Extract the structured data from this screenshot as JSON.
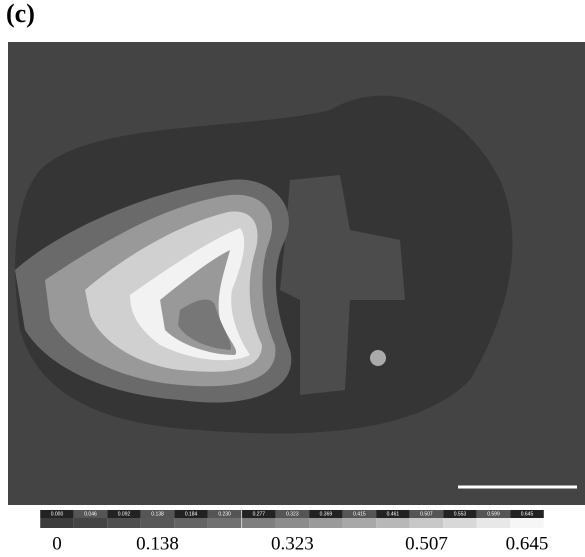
{
  "chart_data": {
    "type": "contour",
    "title": "(c)",
    "levels": [
      0,
      0.046,
      0.092,
      0.138,
      0.184,
      0.23,
      0.277,
      0.323,
      0.369,
      0.415,
      0.461,
      0.507,
      0.553,
      0.599,
      0.645
    ],
    "level_labels": [
      "0.000",
      "0.046",
      "0.092",
      "0.138",
      "0.184",
      "0.230",
      "0.277",
      "0.323",
      "0.369",
      "0.415",
      "0.461",
      "0.507",
      "0.553",
      "0.599",
      "0.645"
    ],
    "colors": [
      "#3c3c3c",
      "#444444",
      "#4e4e4e",
      "#585858",
      "#646464",
      "#707070",
      "#7e7e7e",
      "#8c8c8c",
      "#9a9a9a",
      "#a8a8a8",
      "#b8b8b8",
      "#c8c8c8",
      "#d8d8d8",
      "#e8e8e8",
      "#f6f6f6"
    ],
    "ticks": [
      0,
      0.138,
      0.323,
      0.507,
      0.645
    ],
    "clim": [
      0,
      0.645
    ]
  }
}
